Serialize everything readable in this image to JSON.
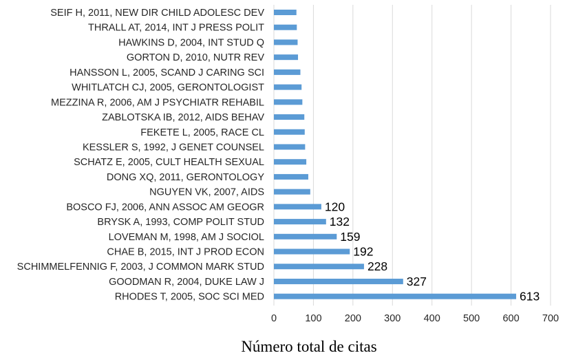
{
  "chart_data": {
    "type": "bar",
    "orientation": "horizontal",
    "categories": [
      "SEIF H, 2011, NEW DIR CHILD ADOLESC DEV",
      "THRALL AT, 2014, INT J PRESS POLIT",
      "HAWKINS D, 2004, INT STUD Q",
      "GORTON D, 2010, NUTR REV",
      "HANSSON L, 2005, SCAND J CARING SCI",
      "WHITLATCH CJ, 2005, GERONTOLOGIST",
      "MEZZINA R, 2006, AM J PSYCHIATR REHABIL",
      "ZABLOTSKA IB, 2012, AIDS BEHAV",
      "FEKETE L, 2005, RACE CL",
      "KESSLER S, 1992, J GENET COUNSEL",
      "SCHATZ E, 2005, CULT HEALTH SEXUAL",
      "DONG XQ, 2011, GERONTOLOGY",
      "NGUYEN VK, 2007, AIDS",
      "BOSCO FJ, 2006, ANN ASSOC AM GEOGR",
      "BRYSK A, 1993, COMP POLIT STUD",
      "LOVEMAN M, 1998, AM J SOCIOL",
      "CHAE B, 2015, INT J PROD ECON",
      "SCHIMMELFENNIG F, 2003, J COMMON MARK STUD",
      "GOODMAN R, 2004, DUKE LAW J",
      "RHODES T, 2005, SOC SCI MED"
    ],
    "values": [
      57,
      58,
      60,
      61,
      67,
      70,
      72,
      77,
      78,
      79,
      82,
      87,
      92,
      120,
      132,
      159,
      192,
      228,
      327,
      613
    ],
    "data_labels": [
      "",
      "",
      "",
      "",
      "",
      "",
      "",
      "",
      "",
      "",
      "",
      "",
      "",
      "120",
      "132",
      "159",
      "192",
      "228",
      "327",
      "613"
    ],
    "title": "",
    "xlabel": "Número total de citas",
    "ylabel": "",
    "xlim": [
      0,
      700
    ],
    "xticks": [
      0,
      100,
      200,
      300,
      400,
      500,
      600,
      700
    ],
    "grid": "vertical",
    "legend": "none",
    "bar_color": "#5b9bd5",
    "grid_color": "#d9d9d9"
  }
}
